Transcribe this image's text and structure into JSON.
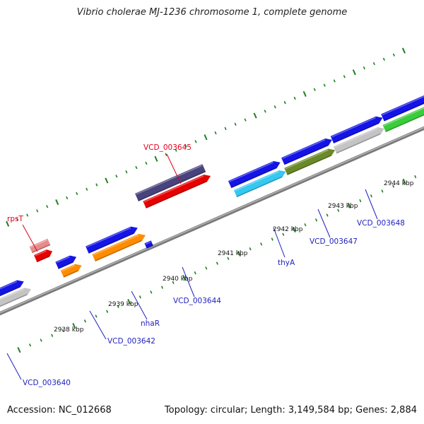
{
  "title": "Vibrio cholerae MJ-1236 chromosome 1, complete genome",
  "accession": "Accession: NC_012668",
  "summary": "Topology: circular; Length: 3,149,584 bp; Genes: 2,884",
  "colors": {
    "backbone": "#8c8c8c",
    "tick": "#1f7f1f",
    "cds_blue": "#1414e6",
    "red": "#e60000",
    "pink": "#e98a8a",
    "orange": "#ff8c00",
    "gray": "#c4c4c4",
    "purple": "#48437d",
    "cyan": "#35c8f0",
    "olive": "#6a8a2a",
    "green": "#3bcc3b",
    "label_red": "#e0001b",
    "label_blue": "#1f1fbf"
  },
  "scale_labels": [
    "2938 kbp",
    "2939 kbp",
    "2940 kbp",
    "2941 kbp",
    "2942 kbp",
    "2943 kbp",
    "2944 kbp"
  ],
  "gene_labels": [
    "rpsT",
    "VCD_003645",
    "VCD_003640",
    "VCD_003642",
    "nhaR",
    "VCD_003644",
    "thyA",
    "VCD_003647",
    "VCD_003648"
  ]
}
